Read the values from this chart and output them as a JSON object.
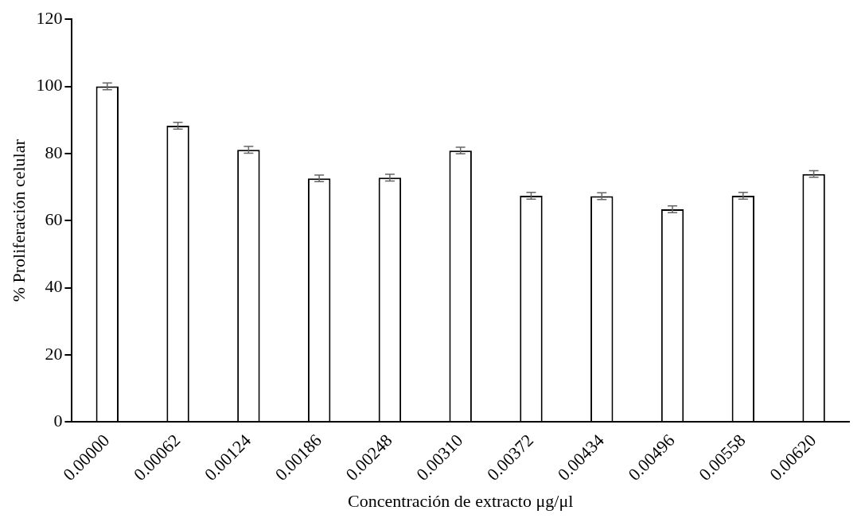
{
  "chart_data": {
    "type": "bar",
    "xlabel": "Concentración de extracto μg/μl",
    "ylabel": "% Proliferación celular",
    "categories": [
      "0.00000",
      "0.00062",
      "0.00124",
      "0.00186",
      "0.00248",
      "0.00310",
      "0.00372",
      "0.00434",
      "0.00496",
      "0.00558",
      "0.00620"
    ],
    "values": [
      100,
      88.3,
      81.1,
      72.6,
      72.8,
      80.9,
      67.4,
      67.3,
      63.4,
      67.4,
      73.9
    ],
    "errors": [
      1,
      1,
      1,
      1,
      1,
      1,
      1,
      1,
      1,
      1,
      1
    ],
    "color": "#ffffff",
    "ylim": [
      0,
      120
    ],
    "yticks": [
      0,
      20,
      40,
      60,
      80,
      100,
      120
    ]
  }
}
